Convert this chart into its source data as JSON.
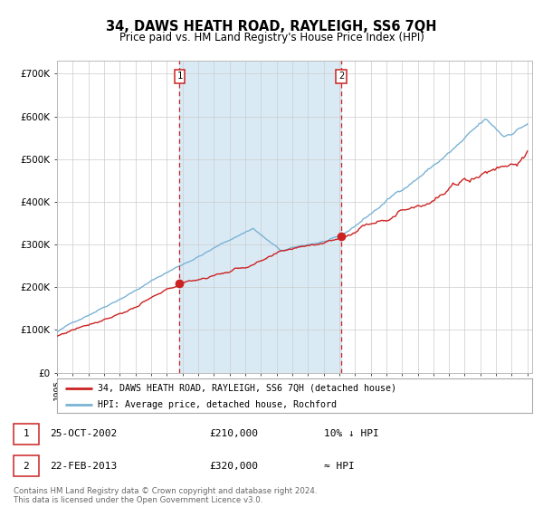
{
  "title": "34, DAWS HEATH ROAD, RAYLEIGH, SS6 7QH",
  "subtitle": "Price paid vs. HM Land Registry's House Price Index (HPI)",
  "ylim": [
    0,
    730000
  ],
  "yticks": [
    0,
    100000,
    200000,
    300000,
    400000,
    500000,
    600000,
    700000
  ],
  "ytick_labels": [
    "£0",
    "£100K",
    "£200K",
    "£300K",
    "£400K",
    "£500K",
    "£600K",
    "£700K"
  ],
  "x_start_year": 1995,
  "x_end_year": 2025,
  "sale1_year": 2002.82,
  "sale1_price": 210000,
  "sale2_year": 2013.13,
  "sale2_price": 320000,
  "sale1_date": "25-OCT-2002",
  "sale1_note": "10% ↓ HPI",
  "sale2_date": "22-FEB-2013",
  "sale2_note": "≈ HPI",
  "hpi_color": "#7ab3d4",
  "price_color": "#cc2222",
  "marker_color": "#cc2222",
  "vline_color": "#cc2222",
  "shade_color": "#daeaf5",
  "grid_color": "#cccccc",
  "background_color": "#ffffff",
  "title_fontsize": 10.5,
  "subtitle_fontsize": 8.5,
  "tick_fontsize": 7.5,
  "legend_label_price": "34, DAWS HEATH ROAD, RAYLEIGH, SS6 7QH (detached house)",
  "legend_label_hpi": "HPI: Average price, detached house, Rochford",
  "footer_text": "Contains HM Land Registry data © Crown copyright and database right 2024.\nThis data is licensed under the Open Government Licence v3.0."
}
